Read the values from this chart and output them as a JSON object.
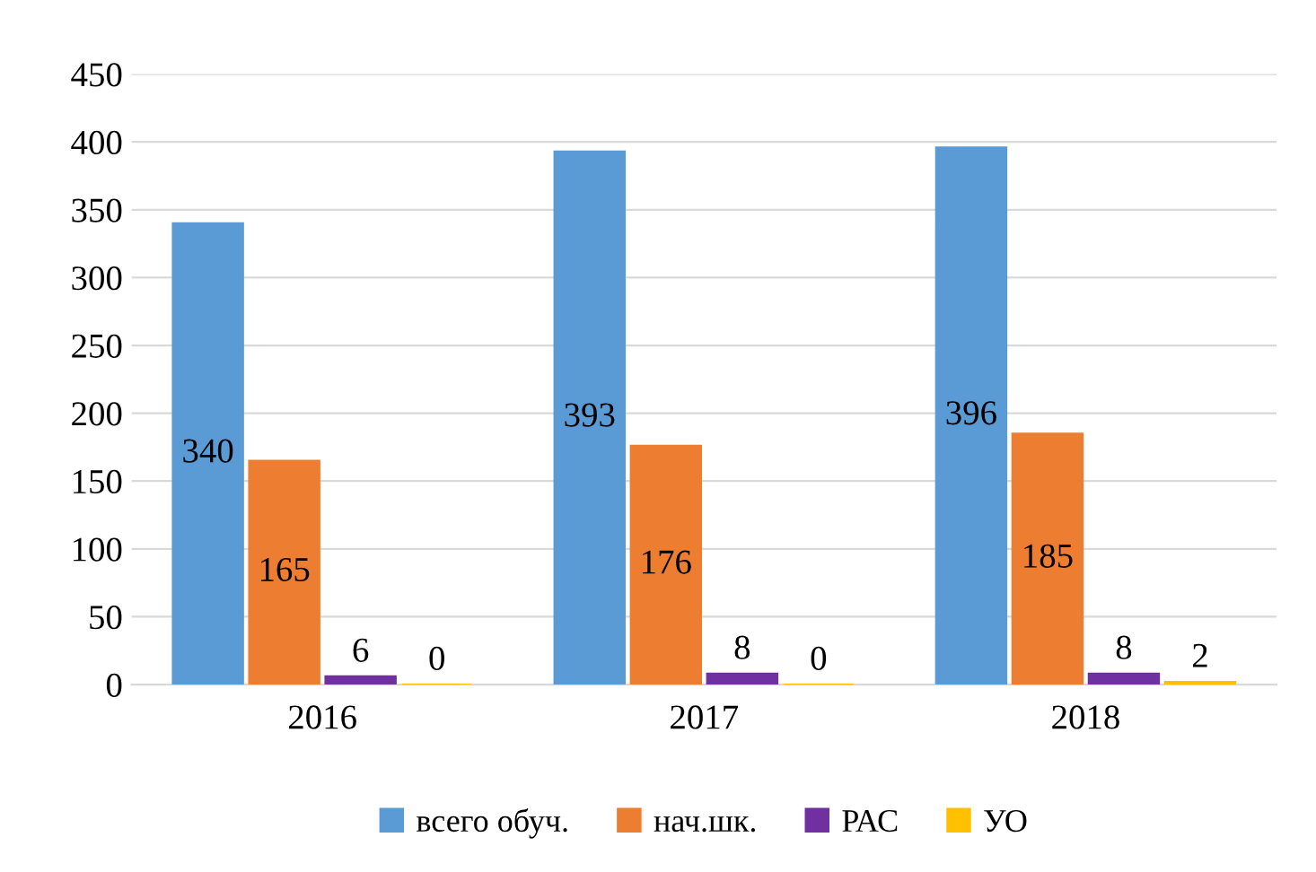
{
  "chart_data": {
    "type": "bar",
    "categories": [
      "2016",
      "2017",
      "2018"
    ],
    "series": [
      {
        "name": "всего обуч.",
        "color": "#5b9bd5",
        "values": [
          340,
          393,
          396
        ]
      },
      {
        "name": "нач.шк.",
        "color": "#ed7d31",
        "values": [
          165,
          176,
          185
        ]
      },
      {
        "name": "РАС",
        "color": "#7030a0",
        "values": [
          6,
          8,
          8
        ]
      },
      {
        "name": "УО",
        "color": "#ffc000",
        "values": [
          0,
          0,
          2
        ]
      }
    ],
    "ylim": [
      0,
      450
    ],
    "yticks": [
      0,
      50,
      100,
      150,
      200,
      250,
      300,
      350,
      400,
      450
    ],
    "grid": "y",
    "legend": "bottom",
    "data_labels": true
  }
}
